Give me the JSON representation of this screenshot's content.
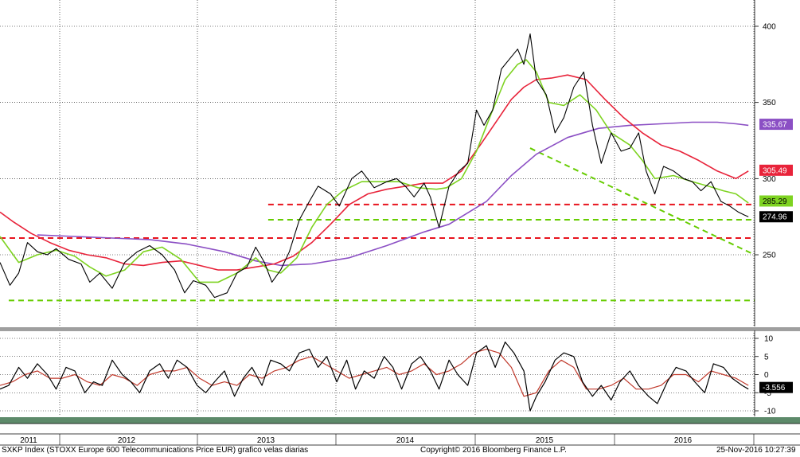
{
  "footer": {
    "left": "SXKP Index (STOXX Europe 600 Telecommunications Price EUR) grafico velas diarias",
    "center": "Copyright© 2016 Bloomberg Finance L.P.",
    "right": "25-Nov-2016 10:27:39"
  },
  "colors": {
    "price": "#000000",
    "ma_short": "#7ed321",
    "ma_mid": "#e8233a",
    "ma_long": "#8b4fc4",
    "support_red": "#e8141e",
    "support_green": "#66cc00",
    "osc_fast": "#000000",
    "osc_slow": "#c0392b",
    "grid": "#000000",
    "bottom_band": "#5d8a6a"
  },
  "chart_data": [
    {
      "type": "line",
      "name_shown": "",
      "x_axis_labels": [
        "2011",
        "2012",
        "2013",
        "2014",
        "2015",
        "2016"
      ],
      "y_ticks": [
        250,
        300,
        350,
        400
      ],
      "ylim": [
        205,
        410
      ],
      "xlim": [
        2010.9,
        2016.95
      ],
      "series": [
        {
          "key": "price",
          "x": [
            2010.9,
            2010.98,
            2011.05,
            2011.12,
            2011.2,
            2011.28,
            2011.35,
            2011.45,
            2011.55,
            2011.62,
            2011.7,
            2011.8,
            2011.9,
            2012.0,
            2012.1,
            2012.2,
            2012.3,
            2012.38,
            2012.45,
            2012.55,
            2012.62,
            2012.72,
            2012.8,
            2012.88,
            2012.95,
            2013.02,
            2013.08,
            2013.15,
            2013.22,
            2013.3,
            2013.38,
            2013.45,
            2013.55,
            2013.62,
            2013.72,
            2013.8,
            2013.9,
            2014.0,
            2014.08,
            2014.15,
            2014.22,
            2014.3,
            2014.35,
            2014.42,
            2014.5,
            2014.58,
            2014.65,
            2014.72,
            2014.78,
            2014.85,
            2014.92,
            2015.0,
            2015.05,
            2015.1,
            2015.15,
            2015.2,
            2015.28,
            2015.35,
            2015.42,
            2015.5,
            2015.58,
            2015.65,
            2015.72,
            2015.8,
            2015.88,
            2015.95,
            2016.02,
            2016.08,
            2016.15,
            2016.22,
            2016.3,
            2016.38,
            2016.45,
            2016.52,
            2016.6,
            2016.68,
            2016.75,
            2016.82,
            2016.87,
            2016.9
          ],
          "y": [
            245,
            230,
            238,
            258,
            252,
            250,
            254,
            247,
            244,
            232,
            238,
            228,
            245,
            252,
            256,
            250,
            240,
            225,
            233,
            230,
            222,
            225,
            238,
            242,
            255,
            245,
            232,
            240,
            252,
            273,
            285,
            295,
            290,
            282,
            300,
            305,
            294,
            298,
            300,
            295,
            288,
            297,
            288,
            268,
            295,
            305,
            310,
            345,
            335,
            345,
            372,
            380,
            385,
            375,
            395,
            365,
            355,
            330,
            340,
            360,
            370,
            335,
            310,
            330,
            318,
            320,
            330,
            305,
            290,
            308,
            305,
            300,
            298,
            292,
            298,
            285,
            282,
            278,
            276,
            275
          ]
        },
        {
          "key": "ma_short",
          "x": [
            2010.9,
            2011.05,
            2011.2,
            2011.35,
            2011.5,
            2011.62,
            2011.75,
            2011.9,
            2012.05,
            2012.2,
            2012.35,
            2012.5,
            2012.65,
            2012.8,
            2012.95,
            2013.05,
            2013.15,
            2013.28,
            2013.4,
            2013.52,
            2013.65,
            2013.8,
            2013.95,
            2014.1,
            2014.25,
            2014.4,
            2014.48,
            2014.6,
            2014.72,
            2014.85,
            2014.95,
            2015.05,
            2015.12,
            2015.2,
            2015.3,
            2015.42,
            2015.55,
            2015.68,
            2015.8,
            2015.95,
            2016.05,
            2016.15,
            2016.3,
            2016.45,
            2016.58,
            2016.7,
            2016.8,
            2016.9
          ],
          "y": [
            262,
            245,
            250,
            253,
            249,
            242,
            236,
            240,
            252,
            255,
            247,
            232,
            232,
            238,
            248,
            240,
            238,
            248,
            268,
            283,
            292,
            298,
            298,
            298,
            294,
            293,
            294,
            300,
            318,
            345,
            365,
            375,
            378,
            370,
            350,
            348,
            355,
            345,
            330,
            322,
            312,
            300,
            302,
            298,
            295,
            292,
            290,
            284
          ]
        },
        {
          "key": "ma_mid",
          "x": [
            2010.9,
            2011.0,
            2011.15,
            2011.3,
            2011.45,
            2011.6,
            2011.75,
            2011.9,
            2012.05,
            2012.2,
            2012.35,
            2012.5,
            2012.65,
            2012.8,
            2012.95,
            2013.1,
            2013.25,
            2013.4,
            2013.55,
            2013.7,
            2013.85,
            2014.0,
            2014.15,
            2014.3,
            2014.45,
            2014.6,
            2014.75,
            2014.9,
            2015.0,
            2015.1,
            2015.2,
            2015.32,
            2015.45,
            2015.6,
            2015.75,
            2015.9,
            2016.05,
            2016.2,
            2016.35,
            2016.5,
            2016.65,
            2016.8,
            2016.9
          ],
          "y": [
            278,
            272,
            264,
            258,
            253,
            250,
            248,
            244,
            243,
            245,
            246,
            243,
            240,
            240,
            242,
            244,
            249,
            258,
            270,
            283,
            290,
            293,
            295,
            297,
            297,
            305,
            322,
            340,
            352,
            360,
            365,
            366,
            368,
            365,
            352,
            340,
            330,
            322,
            318,
            312,
            305,
            300,
            305
          ]
        },
        {
          "key": "ma_long",
          "x": [
            2011.2,
            2011.5,
            2011.8,
            2012.1,
            2012.4,
            2012.7,
            2012.95,
            2013.15,
            2013.4,
            2013.7,
            2014.0,
            2014.3,
            2014.5,
            2014.8,
            2015.0,
            2015.2,
            2015.45,
            2015.7,
            2015.95,
            2016.2,
            2016.45,
            2016.65,
            2016.8,
            2016.9
          ],
          "y": [
            263,
            262,
            261,
            260,
            257,
            252,
            246,
            243,
            244,
            248,
            256,
            265,
            270,
            285,
            302,
            316,
            327,
            333,
            335,
            336,
            337,
            337,
            336,
            335
          ]
        },
        {
          "key": "ma_long_osc_ref",
          "x": [],
          "y": []
        }
      ],
      "reference_lines": [
        {
          "kind": "red_dashed",
          "y": 261,
          "x_from": 2010.9,
          "x_to": 2016.95
        },
        {
          "kind": "red_dashed",
          "y": 283,
          "x_from": 2013.05,
          "x_to": 2016.95
        },
        {
          "kind": "green_dashed",
          "y": 273,
          "x_from": 2013.05,
          "x_to": 2016.95
        },
        {
          "kind": "green_dashed",
          "y": 220,
          "x_from": 2010.97,
          "x_to": 2016.95
        },
        {
          "kind": "green_trend",
          "x_from": 2015.15,
          "y_from": 320,
          "x_to": 2016.95,
          "y_to": 250
        }
      ],
      "last_values": [
        {
          "label": "335.67",
          "y": 335.67,
          "style": "ma_long"
        },
        {
          "label": "305.49",
          "y": 305.49,
          "style": "ma_mid"
        },
        {
          "label": "285.29",
          "y": 285.29,
          "style": "ma_short"
        },
        {
          "label": "274.96",
          "y": 274.96,
          "style": "price"
        }
      ]
    },
    {
      "type": "line",
      "y_ticks": [
        10,
        5,
        0,
        -5,
        -10
      ],
      "ylim": [
        -11,
        11
      ],
      "xlim": [
        2010.9,
        2016.95
      ],
      "series": [
        {
          "key": "osc_fast",
          "x": [
            2010.9,
            2010.97,
            2011.05,
            2011.12,
            2011.2,
            2011.28,
            2011.35,
            2011.43,
            2011.5,
            2011.58,
            2011.65,
            2011.72,
            2011.8,
            2011.88,
            2011.95,
            2012.02,
            2012.1,
            2012.18,
            2012.25,
            2012.32,
            2012.4,
            2012.48,
            2012.55,
            2012.62,
            2012.7,
            2012.78,
            2012.85,
            2012.92,
            2013.0,
            2013.07,
            2013.15,
            2013.22,
            2013.3,
            2013.38,
            2013.45,
            2013.52,
            2013.6,
            2013.68,
            2013.75,
            2013.82,
            2013.9,
            2013.98,
            2014.05,
            2014.12,
            2014.2,
            2014.27,
            2014.35,
            2014.42,
            2014.5,
            2014.57,
            2014.65,
            2014.72,
            2014.8,
            2014.87,
            2014.95,
            2015.02,
            2015.1,
            2015.15,
            2015.2,
            2015.27,
            2015.35,
            2015.42,
            2015.5,
            2015.57,
            2015.65,
            2015.72,
            2015.8,
            2015.87,
            2015.95,
            2016.02,
            2016.1,
            2016.17,
            2016.25,
            2016.32,
            2016.4,
            2016.47,
            2016.55,
            2016.62,
            2016.7,
            2016.77,
            2016.85,
            2016.9
          ],
          "y": [
            -4,
            -3,
            2,
            -1,
            3,
            0,
            -4,
            2,
            1,
            -5,
            -2,
            -3,
            4,
            0,
            -2,
            -5,
            1,
            3,
            -1,
            4,
            2,
            -3,
            -5,
            -2,
            1,
            -6,
            -1,
            2,
            -3,
            4,
            3,
            1,
            6,
            7,
            2,
            5,
            -2,
            4,
            -4,
            1,
            -1,
            5,
            2,
            -4,
            3,
            5,
            1,
            -4,
            4,
            0,
            -3,
            6,
            8,
            2,
            9,
            6,
            1,
            -10,
            -6,
            -2,
            4,
            6,
            5,
            -2,
            -6,
            -3,
            -7,
            -2,
            1,
            -3,
            -6,
            -8,
            -2,
            2,
            1,
            -2,
            -5,
            3,
            2,
            -1,
            -3,
            -4
          ]
        },
        {
          "key": "osc_slow",
          "x": [
            2010.9,
            2011.0,
            2011.1,
            2011.2,
            2011.3,
            2011.4,
            2011.5,
            2011.6,
            2011.7,
            2011.8,
            2011.9,
            2012.0,
            2012.1,
            2012.2,
            2012.3,
            2012.4,
            2012.5,
            2012.6,
            2012.7,
            2012.8,
            2012.9,
            2013.0,
            2013.1,
            2013.2,
            2013.3,
            2013.4,
            2013.5,
            2013.6,
            2013.7,
            2013.8,
            2013.9,
            2014.0,
            2014.1,
            2014.2,
            2014.3,
            2014.4,
            2014.5,
            2014.6,
            2014.7,
            2014.8,
            2014.9,
            2015.0,
            2015.1,
            2015.2,
            2015.3,
            2015.4,
            2015.5,
            2015.6,
            2015.7,
            2015.8,
            2015.9,
            2016.0,
            2016.1,
            2016.2,
            2016.3,
            2016.4,
            2016.5,
            2016.6,
            2016.7,
            2016.8,
            2016.9
          ],
          "y": [
            -3,
            -2,
            0,
            1,
            -1,
            -1,
            0,
            -2,
            -3,
            0,
            -1,
            -3,
            0,
            1,
            1,
            2,
            -1,
            -3,
            -2,
            -3,
            0,
            -1,
            1,
            2,
            4,
            5,
            3,
            1,
            -1,
            0,
            1,
            2,
            0,
            1,
            3,
            0,
            1,
            3,
            6,
            7,
            6,
            2,
            -6,
            -5,
            1,
            4,
            2,
            -4,
            -4,
            -3,
            -1,
            -4,
            -4,
            -3,
            0,
            0,
            -2,
            1,
            0,
            -1,
            -3
          ]
        }
      ],
      "last_value": {
        "label": "-3.556",
        "y": -3.556
      }
    }
  ]
}
